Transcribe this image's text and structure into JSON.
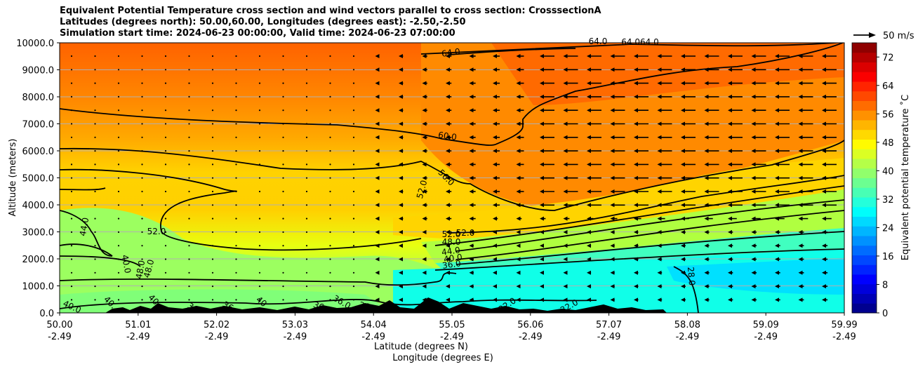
{
  "chart_data": {
    "type": "heatmap",
    "title_lines": [
      "Equivalent Potential Temperature cross section and wind vectors parallel to cross section: CrosssectionA",
      "Latitudes (degrees north): 50.00,60.00, Longitudes (degrees east): -2.50,-2.50",
      "Simulation start time: 2024-06-23 00:00:00, Valid time: 2024-06-23 07:00:00"
    ],
    "xlabel_lat": "Latitude (degrees N)",
    "xlabel_lon": "Longitude (degrees E)",
    "ylabel": "Altitude (meters)",
    "x_ticks": [
      {
        "lat": "50.00",
        "lon": "-2.49"
      },
      {
        "lat": "51.01",
        "lon": "-2.49"
      },
      {
        "lat": "52.02",
        "lon": "-2.49"
      },
      {
        "lat": "53.03",
        "lon": "-2.49"
      },
      {
        "lat": "54.04",
        "lon": "-2.49"
      },
      {
        "lat": "55.05",
        "lon": "-2.49"
      },
      {
        "lat": "56.06",
        "lon": "-2.49"
      },
      {
        "lat": "57.07",
        "lon": "-2.49"
      },
      {
        "lat": "58.08",
        "lon": "-2.49"
      },
      {
        "lat": "59.09",
        "lon": "-2.49"
      },
      {
        "lat": "59.99",
        "lon": "-2.49"
      }
    ],
    "y_ticks": [
      "0.0",
      "1000.0",
      "2000.0",
      "3000.0",
      "4000.0",
      "5000.0",
      "6000.0",
      "7000.0",
      "8000.0",
      "9000.0",
      "10000.0"
    ],
    "ylim": [
      0,
      10000
    ],
    "grid": true,
    "colorbar": {
      "label": "Equivalent potential temperature ˚C",
      "range": [
        0,
        76
      ],
      "ticks": [
        "0",
        "8",
        "16",
        "24",
        "32",
        "40",
        "48",
        "56",
        "64",
        "72"
      ],
      "colors": [
        "#00008f",
        "#0000b5",
        "#0000db",
        "#0000ff",
        "#0024ff",
        "#0048ff",
        "#006cff",
        "#0091ff",
        "#00b5ff",
        "#00d9ff",
        "#00fdfb",
        "#24ffdb",
        "#48ffb5",
        "#6cff91",
        "#91ff6c",
        "#b5ff48",
        "#dbff24",
        "#fffb00",
        "#ffd900",
        "#ffb500",
        "#ff9100",
        "#ff6c00",
        "#ff4800",
        "#ff2400",
        "#fb0000",
        "#db0000",
        "#b50000",
        "#8f0000"
      ]
    },
    "quiver_key": "50 m/s",
    "contour_labels": [
      {
        "text": "64.0"
      },
      {
        "text": "64.0"
      },
      {
        "text": "64.064.0"
      },
      {
        "text": "60.0"
      },
      {
        "text": "56.0"
      },
      {
        "text": "52.0"
      },
      {
        "text": "52.0"
      },
      {
        "text": "52.0"
      },
      {
        "text": "52.0"
      },
      {
        "text": "48.0"
      },
      {
        "text": "44.0"
      },
      {
        "text": "40.0"
      },
      {
        "text": "36.0"
      },
      {
        "text": "44.0"
      },
      {
        "text": "40.0"
      },
      {
        "text": "48.0"
      },
      {
        "text": "48.0"
      },
      {
        "text": "40.0"
      },
      {
        "text": "40."
      },
      {
        "text": "40"
      },
      {
        "text": "36"
      },
      {
        "text": "36"
      },
      {
        "text": "40"
      },
      {
        "text": "36.0"
      },
      {
        "text": "36.0"
      },
      {
        "text": "36"
      },
      {
        "text": "32.0"
      },
      {
        "text": "32.0"
      },
      {
        "text": "28.0"
      }
    ]
  }
}
